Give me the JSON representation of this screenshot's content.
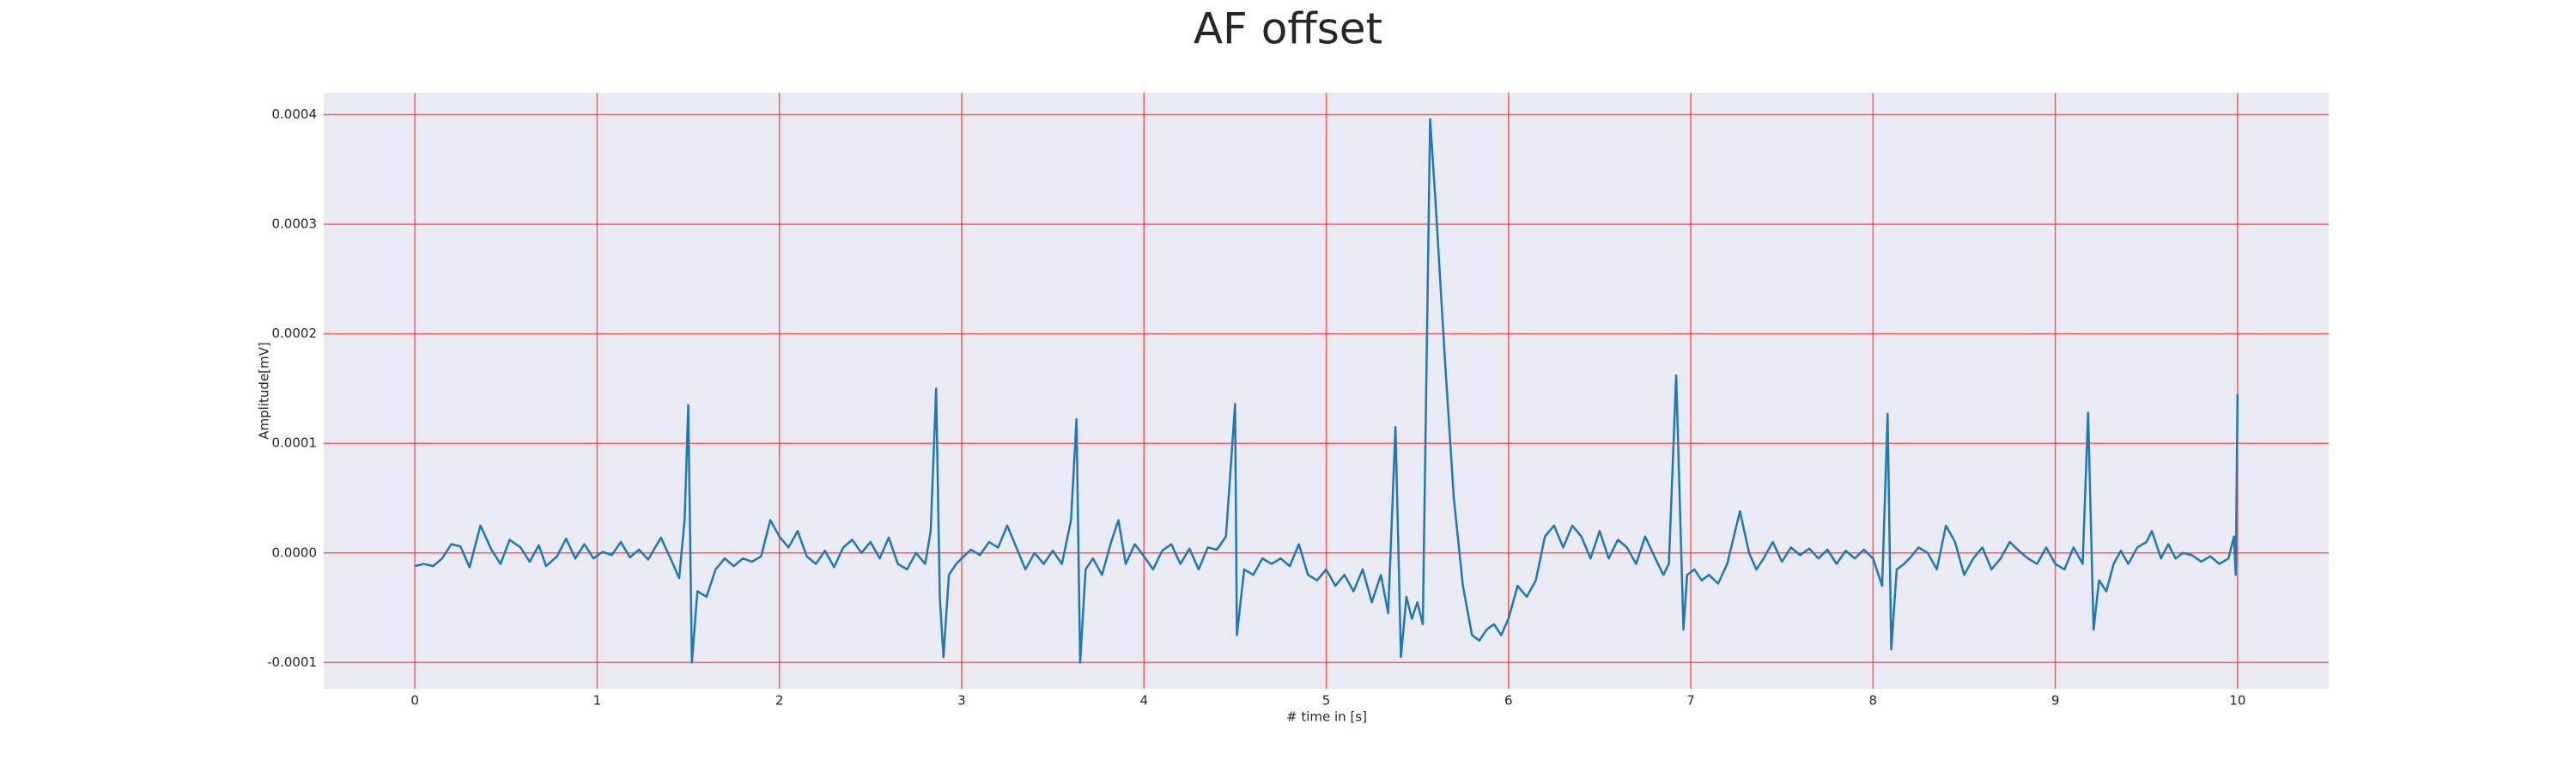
{
  "chart_data": {
    "type": "line",
    "title": "AF offset",
    "x_label": "# time in [s]",
    "y_label": "Amplitude[mV]",
    "xlim": [
      -0.5,
      10.5
    ],
    "ylim": [
      -0.000124,
      0.00042
    ],
    "xticks": [
      0,
      1,
      2,
      3,
      4,
      5,
      6,
      7,
      8,
      9,
      10
    ],
    "yticks": [
      -0.0001,
      {
        "value": 0,
        "label": "0.0000"
      },
      0.0001,
      0.0002,
      0.0003,
      0.0004
    ],
    "grid": true,
    "grid_color": "#ff0000",
    "background": "#eaeaf2",
    "series": [
      {
        "color": "#1f77b4",
        "x": [
          0,
          0.05,
          0.1,
          0.15,
          0.2,
          0.25,
          0.3,
          0.36,
          0.42,
          0.47,
          0.52,
          0.58,
          0.63,
          0.68,
          0.72,
          0.78,
          0.83,
          0.88,
          0.93,
          0.98,
          1.03,
          1.08,
          1.13,
          1.18,
          1.23,
          1.28,
          1.35,
          1.4,
          1.45,
          1.48,
          1.5,
          1.52,
          1.55,
          1.6,
          1.65,
          1.7,
          1.75,
          1.8,
          1.85,
          1.9,
          1.95,
          2.0,
          2.05,
          2.1,
          2.15,
          2.2,
          2.25,
          2.3,
          2.35,
          2.4,
          2.45,
          2.5,
          2.55,
          2.6,
          2.65,
          2.7,
          2.75,
          2.8,
          2.83,
          2.86,
          2.88,
          2.9,
          2.93,
          2.97,
          3.0,
          3.05,
          3.1,
          3.15,
          3.2,
          3.25,
          3.3,
          3.35,
          3.4,
          3.45,
          3.5,
          3.55,
          3.6,
          3.63,
          3.65,
          3.68,
          3.72,
          3.77,
          3.82,
          3.86,
          3.9,
          3.95,
          4.0,
          4.05,
          4.1,
          4.15,
          4.2,
          4.25,
          4.3,
          4.35,
          4.4,
          4.45,
          4.5,
          4.51,
          4.55,
          4.6,
          4.65,
          4.7,
          4.75,
          4.8,
          4.85,
          4.9,
          4.95,
          5.0,
          5.05,
          5.1,
          5.15,
          5.2,
          5.25,
          5.3,
          5.34,
          5.38,
          5.41,
          5.44,
          5.47,
          5.5,
          5.53,
          5.57,
          5.6,
          5.65,
          5.7,
          5.75,
          5.8,
          5.84,
          5.88,
          5.92,
          5.96,
          6.0,
          6.05,
          6.1,
          6.15,
          6.2,
          6.25,
          6.3,
          6.35,
          6.4,
          6.45,
          6.5,
          6.55,
          6.6,
          6.65,
          6.7,
          6.75,
          6.8,
          6.85,
          6.88,
          6.92,
          6.96,
          6.98,
          7.02,
          7.06,
          7.1,
          7.15,
          7.2,
          7.27,
          7.32,
          7.36,
          7.4,
          7.45,
          7.5,
          7.55,
          7.6,
          7.65,
          7.7,
          7.75,
          7.8,
          7.85,
          7.9,
          7.95,
          8.0,
          8.05,
          8.08,
          8.1,
          8.13,
          8.17,
          8.2,
          8.25,
          8.3,
          8.35,
          8.4,
          8.45,
          8.5,
          8.55,
          8.6,
          8.65,
          8.7,
          8.75,
          8.8,
          8.85,
          8.9,
          8.95,
          9.0,
          9.05,
          9.1,
          9.15,
          9.18,
          9.21,
          9.24,
          9.28,
          9.32,
          9.36,
          9.4,
          9.45,
          9.5,
          9.53,
          9.58,
          9.62,
          9.66,
          9.7,
          9.75,
          9.8,
          9.85,
          9.9,
          9.95,
          9.98,
          9.99,
          10.0
        ],
        "values": [
          -1.2e-05,
          -1e-05,
          -1.2e-05,
          -5e-06,
          8e-06,
          6e-06,
          -1.3e-05,
          2.5e-05,
          3e-06,
          -1e-05,
          1.2e-05,
          5e-06,
          -8e-06,
          7e-06,
          -1.2e-05,
          -3e-06,
          1.3e-05,
          -5e-06,
          8e-06,
          -5e-06,
          1e-06,
          -2e-06,
          1e-05,
          -4e-06,
          3e-06,
          -6e-06,
          1.4e-05,
          -4e-06,
          -2.3e-05,
          3e-05,
          0.000135,
          -0.0001,
          -3.5e-05,
          -4e-05,
          -1.5e-05,
          -5e-06,
          -1.2e-05,
          -5e-06,
          -8e-06,
          -3e-06,
          3e-05,
          1.5e-05,
          5e-06,
          2e-05,
          -3e-06,
          -1e-05,
          2e-06,
          -1.3e-05,
          5e-06,
          1.2e-05,
          0,
          1e-05,
          -5e-06,
          1.4e-05,
          -1e-05,
          -1.5e-05,
          0,
          -1e-05,
          2e-05,
          0.00015,
          -4e-05,
          -9.5e-05,
          -2e-05,
          -1e-05,
          -5e-06,
          3e-06,
          -2e-06,
          1e-05,
          5e-06,
          2.5e-05,
          5e-06,
          -1.5e-05,
          0,
          -1e-05,
          2e-06,
          -1e-05,
          3e-05,
          0.000122,
          -0.0001,
          -1.5e-05,
          -5e-06,
          -2e-05,
          1e-05,
          3e-05,
          -1e-05,
          8e-06,
          -3e-06,
          -1.5e-05,
          2e-06,
          8e-06,
          -1e-05,
          4e-06,
          -1.5e-05,
          5e-06,
          3e-06,
          1.5e-05,
          0.000136,
          -7.5e-05,
          -1.5e-05,
          -2e-05,
          -5e-06,
          -1e-05,
          -5e-06,
          -1.2e-05,
          8e-06,
          -2e-05,
          -2.5e-05,
          -1.5e-05,
          -3e-05,
          -2e-05,
          -3.5e-05,
          -1.5e-05,
          -4.5e-05,
          -2e-05,
          -5.5e-05,
          0.000115,
          -9.5e-05,
          -4e-05,
          -6e-05,
          -4.5e-05,
          -6.5e-05,
          0.000396,
          0.00032,
          0.00018,
          5e-05,
          -3e-05,
          -7.5e-05,
          -8e-05,
          -7e-05,
          -6.5e-05,
          -7.5e-05,
          -6e-05,
          -3e-05,
          -4e-05,
          -2.5e-05,
          1.5e-05,
          2.5e-05,
          5e-06,
          2.5e-05,
          1.5e-05,
          -5e-06,
          2e-05,
          -5e-06,
          1.2e-05,
          5e-06,
          -1e-05,
          1.5e-05,
          -3e-06,
          -2e-05,
          -1e-05,
          0.000162,
          -7e-05,
          -2e-05,
          -1.5e-05,
          -2.5e-05,
          -2e-05,
          -2.8e-05,
          -1e-05,
          3.8e-05,
          0,
          -1.5e-05,
          -5e-06,
          1e-05,
          -8e-06,
          5e-06,
          -2e-06,
          4e-06,
          -5e-06,
          3e-06,
          -1e-05,
          2e-06,
          -5e-06,
          3e-06,
          -5e-06,
          -3e-05,
          0.000127,
          -8.8e-05,
          -1.5e-05,
          -1e-05,
          -5e-06,
          5e-06,
          0,
          -1.5e-05,
          2.5e-05,
          1e-05,
          -2e-05,
          -5e-06,
          5e-06,
          -1.5e-05,
          -5e-06,
          1e-05,
          2e-06,
          -5e-06,
          -1e-05,
          5e-06,
          -1e-05,
          -1.5e-05,
          5e-06,
          -1e-05,
          0.000128,
          -7e-05,
          -2.5e-05,
          -3.5e-05,
          -1e-05,
          2e-06,
          -1e-05,
          5e-06,
          1e-05,
          2e-05,
          -5e-06,
          8e-06,
          -5e-06,
          0,
          -2e-06,
          -8e-06,
          -3e-06,
          -1e-05,
          -5e-06,
          1.5e-05,
          -2e-05,
          0.000145
        ]
      }
    ]
  }
}
